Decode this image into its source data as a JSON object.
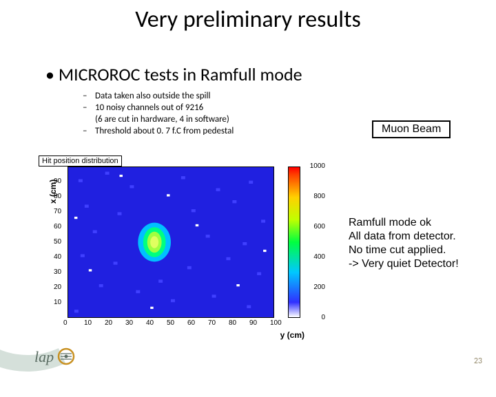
{
  "title": "Very preliminary results",
  "main_bullet": "MICROROC tests in  Ramfull mode",
  "sub": {
    "b1": "Data taken also outside the spill",
    "b2a": "10 noisy channels out of 9216",
    "b2b": "(6 are cut in hardware, 4 in software)",
    "b3": " Threshold about 0. 7 f.C from pedestal"
  },
  "muon_label": "Muon Beam",
  "annotation": {
    "l1": "Ramfull mode ok",
    "l2": "All data from detector.",
    "l3": "No time cut applied.",
    "l4": "-> Very quiet Detector!"
  },
  "page_number": "23",
  "chart": {
    "type": "heatmap",
    "title": "Hit position distribution",
    "xlabel": "y (cm)",
    "ylabel": "x (cm)",
    "xlim": [
      0,
      100
    ],
    "ylim": [
      0,
      100
    ],
    "xticks": [
      0,
      10,
      20,
      30,
      40,
      50,
      60,
      70,
      80,
      90,
      100
    ],
    "yticks": [
      10,
      20,
      30,
      40,
      50,
      60,
      70,
      80,
      90
    ],
    "colorbar_ticks": [
      0,
      200,
      400,
      600,
      800,
      1000
    ],
    "background_color": "#2020e0",
    "noise_color": "#3838ff",
    "hotspot": {
      "x_center": 42,
      "y_center": 50,
      "rx": 5,
      "ry": 10
    },
    "hotspot_colors": {
      "core": "#d0ff40",
      "mid": "#00ff80",
      "outer": "#00c0ff"
    },
    "border_color": "#000000",
    "tick_fontsize": 10,
    "label_fontsize": 12,
    "title_fontsize": 11
  },
  "colors": {
    "swoosh": "#d5e0da",
    "pagenum": "#968c6e",
    "logo_main": "#5b6d63",
    "logo_accent": "#c89020"
  }
}
